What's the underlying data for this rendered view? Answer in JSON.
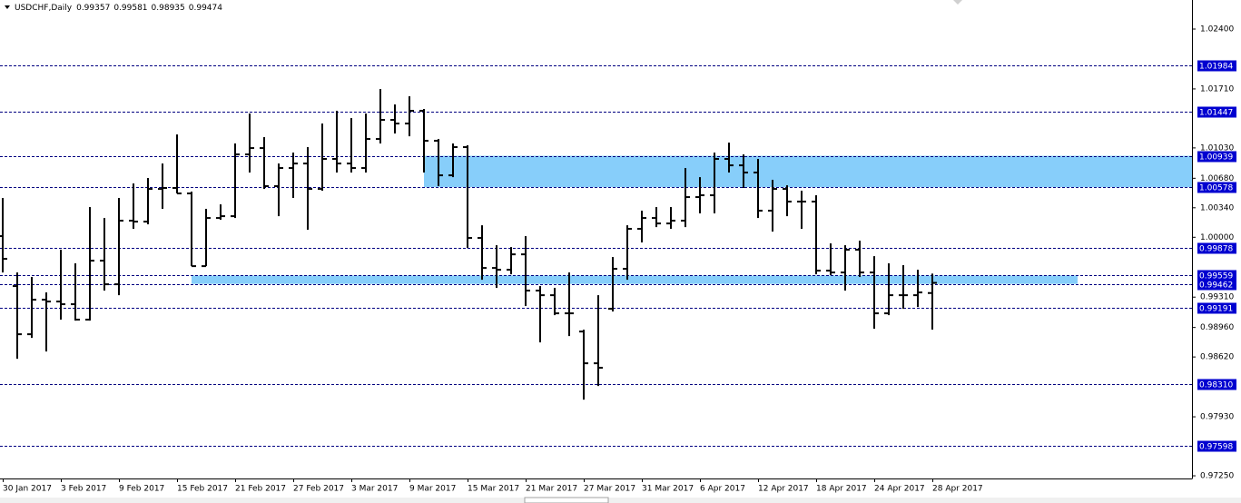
{
  "chart_data": {
    "type": "ohlc",
    "title": "USDCHF,Daily",
    "categories": [
      "30 Jan 2017",
      null,
      null,
      null,
      "3 Feb 2017",
      null,
      null,
      null,
      "9 Feb 2017",
      null,
      null,
      null,
      "15 Feb 2017",
      null,
      null,
      null,
      "21 Feb 2017",
      null,
      null,
      null,
      "27 Feb 2017",
      null,
      null,
      null,
      "3 Mar 2017",
      null,
      null,
      null,
      "9 Mar 2017",
      null,
      null,
      null,
      "15 Mar 2017",
      null,
      null,
      null,
      "21 Mar 2017",
      null,
      null,
      null,
      "27 Mar 2017",
      null,
      null,
      null,
      "31 Mar 2017",
      null,
      null,
      null,
      "6 Apr 2017",
      null,
      null,
      null,
      "12 Apr 2017",
      null,
      null,
      null,
      "18 Apr 2017",
      null,
      null,
      null,
      "24 Apr 2017",
      null,
      null,
      null,
      "28 Apr 2017"
    ],
    "open": [
      1.00013,
      0.99437,
      0.98882,
      0.9928,
      0.99259,
      0.99228,
      0.9905,
      0.9973,
      0.99458,
      1.00191,
      1.0018,
      1.00557,
      1.00568,
      1.00505,
      0.99667,
      1.00222,
      1.00243,
      1.00955,
      1.01028,
      1.00589,
      1.00798,
      1.0085,
      1.00557,
      1.00903,
      1.0085,
      1.00798,
      1.01133,
      1.01353,
      1.01311,
      1.01458,
      1.01112,
      1.00714,
      1.01039,
      0.99992,
      0.99646,
      0.99625,
      0.99803,
      0.99385,
      0.99332,
      0.99123,
      0.98913,
      0.98547,
      0.99175,
      0.99636,
      1.00097,
      1.00222,
      1.00159,
      1.00191,
      1.00463,
      1.00484,
      1.00903,
      1.00829,
      1.00746,
      1.00306,
      1.00557,
      1.00411,
      1.00411,
      0.99615,
      0.99594,
      0.99856,
      0.99594,
      0.99123,
      0.99332,
      0.99332,
      0.99357
    ],
    "high": [
      1.00453,
      0.99594,
      0.99542,
      0.99364,
      0.99856,
      0.99699,
      1.00348,
      1.00222,
      1.00453,
      1.0062,
      1.00683,
      1.0085,
      1.01185,
      1.00526,
      1.00327,
      1.00379,
      1.01081,
      1.01426,
      1.01154,
      1.0085,
      1.00976,
      1.01039,
      1.01311,
      1.01458,
      1.01374,
      1.01426,
      1.01709,
      1.01531,
      1.01625,
      1.01479,
      1.01133,
      1.01081,
      1.0106,
      1.00138,
      0.99908,
      0.99887,
      1.00013,
      0.99437,
      0.99416,
      0.99594,
      0.98934,
      0.99332,
      0.99772,
      1.00138,
      1.00306,
      1.00348,
      1.00348,
      1.00798,
      1.00693,
      1.00976,
      1.01091,
      1.00955,
      1.00903,
      1.00662,
      1.00599,
      1.00536,
      1.00484,
      0.99929,
      0.99908,
      0.9996,
      0.99782,
      0.99699,
      0.99678,
      0.99625,
      0.99581
    ],
    "low": [
      0.99594,
      0.98599,
      0.9884,
      0.98683,
      0.9905,
      0.99039,
      0.99039,
      0.99385,
      0.99332,
      1.00097,
      1.00149,
      1.00327,
      1.00505,
      0.99667,
      0.99667,
      1.00201,
      1.00222,
      1.00746,
      1.00557,
      1.00243,
      1.00453,
      1.00086,
      1.00536,
      1.00746,
      1.00746,
      1.00746,
      1.01081,
      1.01196,
      1.01164,
      1.00746,
      1.00589,
      1.00693,
      0.99877,
      0.9951,
      0.99416,
      0.99573,
      0.99207,
      0.98788,
      0.99102,
      0.98861,
      0.98128,
      0.98285,
      0.99144,
      0.9951,
      0.9994,
      1.00117,
      1.00097,
      1.00117,
      1.00275,
      1.00275,
      1.00746,
      1.00568,
      1.00222,
      1.00065,
      1.00243,
      1.00097,
      0.99573,
      0.99563,
      0.99385,
      0.99542,
      0.98945,
      0.99102,
      0.99175,
      0.99196,
      0.98935
    ],
    "close": [
      0.99751,
      0.98882,
      0.9928,
      0.99259,
      0.99228,
      0.9905,
      0.9973,
      0.99458,
      1.00191,
      1.0018,
      1.00557,
      1.00568,
      1.00505,
      0.99667,
      1.00222,
      1.00243,
      1.00955,
      1.01028,
      1.00589,
      1.00798,
      1.0085,
      1.00557,
      1.00903,
      1.0085,
      1.00798,
      1.01133,
      1.01353,
      1.01311,
      1.01458,
      1.01112,
      1.00714,
      1.01039,
      0.99992,
      0.99646,
      0.99625,
      0.99803,
      0.99385,
      0.99332,
      0.99123,
      0.99123,
      0.98547,
      0.98495,
      0.99636,
      1.00097,
      1.00222,
      1.00159,
      1.00191,
      1.00463,
      1.00484,
      1.00903,
      1.00829,
      1.00746,
      1.00306,
      1.00557,
      1.00411,
      1.00411,
      0.99615,
      0.99594,
      0.99856,
      0.99594,
      0.99123,
      0.99332,
      0.99332,
      0.99364,
      0.99474
    ],
    "color": "#000000",
    "ylim": [
      0.97219,
      1.02735
    ],
    "yticks": [
      {
        "value": 1.024,
        "label": "1.02400"
      },
      {
        "value": 1.0171,
        "label": "1.01710"
      },
      {
        "value": 1.0103,
        "label": "1.01030"
      },
      {
        "value": 1.0068,
        "label": "1.00680"
      },
      {
        "value": 1.0034,
        "label": "1.00340"
      },
      {
        "value": 1.0,
        "label": "1.00000"
      },
      {
        "value": 0.9931,
        "label": "0.99310"
      },
      {
        "value": 0.9896,
        "label": "0.98960"
      },
      {
        "value": 0.9862,
        "label": "0.98620"
      },
      {
        "value": 0.9793,
        "label": "0.97930"
      },
      {
        "value": 0.9725,
        "label": "0.97250"
      }
    ],
    "grid": false,
    "levels": [
      {
        "value": 1.01984,
        "label": "1.01984"
      },
      {
        "value": 1.01447,
        "label": "1.01447"
      },
      {
        "value": 1.00939,
        "label": "1.00939"
      },
      {
        "value": 1.00578,
        "label": "1.00578"
      },
      {
        "value": 0.99878,
        "label": "0.99878"
      },
      {
        "value": 0.99559,
        "label": "0.99559"
      },
      {
        "value": 0.99462,
        "label": "0.99462"
      },
      {
        "value": 0.99191,
        "label": "0.99191"
      },
      {
        "value": 0.9831,
        "label": "0.98310"
      },
      {
        "value": 0.97598,
        "label": "0.97598"
      }
    ],
    "level_color": "#000080",
    "zones": [
      {
        "low": 1.00578,
        "high": 1.00939,
        "x_range": [
          29,
          82
        ]
      },
      {
        "low": 0.99462,
        "high": 0.99559,
        "x_range": [
          13,
          74
        ]
      }
    ],
    "zone_color": "#87cefa"
  }
}
